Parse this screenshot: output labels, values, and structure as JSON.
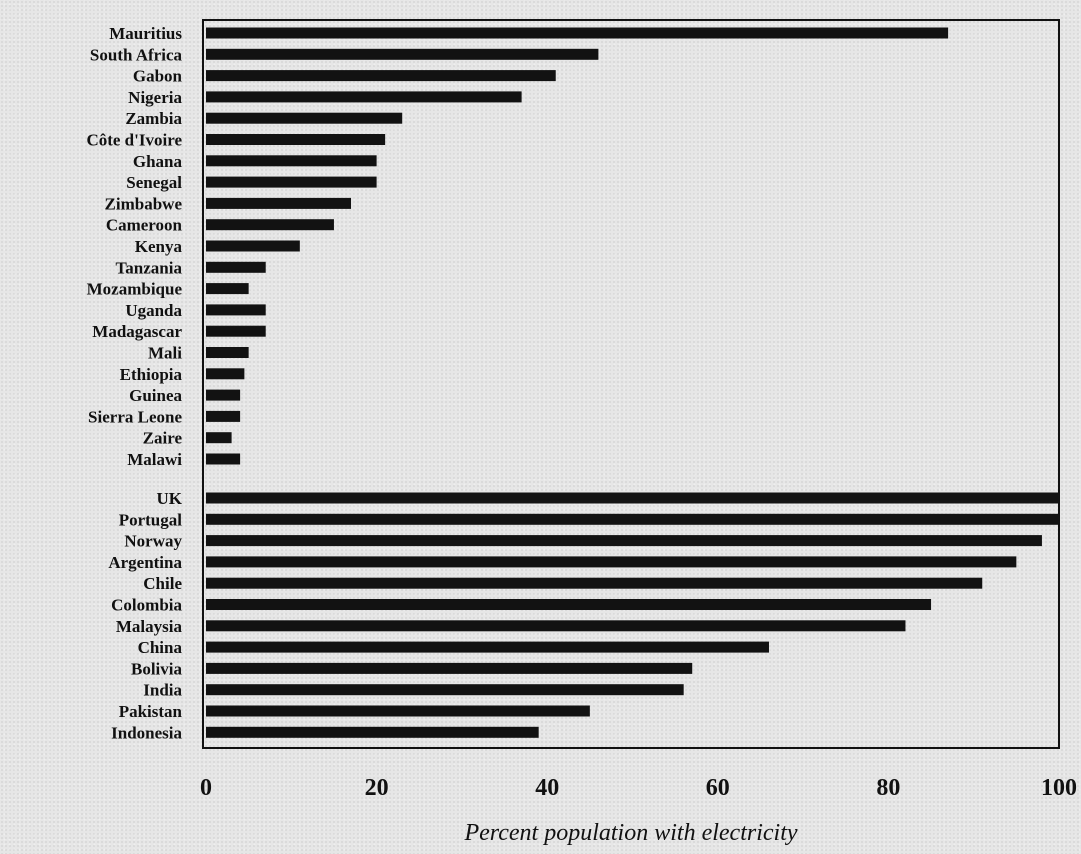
{
  "chart_data": {
    "type": "bar",
    "orientation": "horizontal",
    "xlabel": "Percent population with electricity",
    "xlim": [
      0,
      100
    ],
    "xticks": [
      0,
      20,
      40,
      60,
      80,
      100
    ],
    "grid": false,
    "groups": [
      {
        "categories": [
          "Mauritius",
          "South Africa",
          "Gabon",
          "Nigeria",
          "Zambia",
          "Côte d'Ivoire",
          "Ghana",
          "Senegal",
          "Zimbabwe",
          "Cameroon",
          "Kenya",
          "Tanzania",
          "Mozambique",
          "Uganda",
          "Madagascar",
          "Mali",
          "Ethiopia",
          "Guinea",
          "Sierra Leone",
          "Zaire",
          "Malawi"
        ],
        "values": [
          87,
          46,
          41,
          37,
          23,
          21,
          20,
          20,
          17,
          15,
          11,
          7,
          5,
          7,
          7,
          5,
          4.5,
          4,
          4,
          3,
          4
        ]
      },
      {
        "categories": [
          "UK",
          "Portugal",
          "Norway",
          "Argentina",
          "Chile",
          "Colombia",
          "Malaysia",
          "China",
          "Bolivia",
          "India",
          "Pakistan",
          "Indonesia"
        ],
        "values": [
          100,
          100,
          98,
          95,
          91,
          85,
          82,
          66,
          57,
          56,
          45,
          39
        ]
      }
    ]
  }
}
